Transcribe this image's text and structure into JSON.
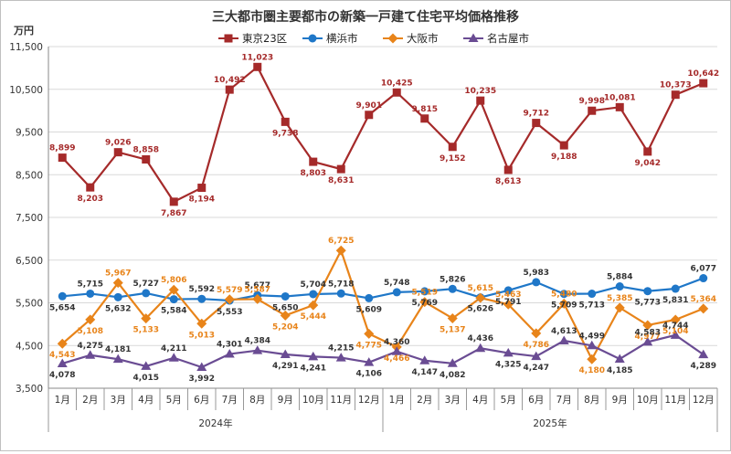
{
  "chart_data": {
    "type": "line",
    "title": "三大都市圏主要都市の新築一戸建て住宅平均価格推移",
    "ylabel": "万円",
    "ylim": [
      3500,
      11500
    ],
    "yticks": [
      3500,
      4500,
      5500,
      6500,
      7500,
      8500,
      9500,
      10500,
      11500
    ],
    "ytick_labels": [
      "3,500",
      "4,500",
      "5,500",
      "6,500",
      "7,500",
      "8,500",
      "9,500",
      "10,500",
      "11,500"
    ],
    "categories": [
      "1月",
      "2月",
      "3月",
      "4月",
      "5月",
      "6月",
      "7月",
      "8月",
      "9月",
      "10月",
      "11月",
      "12月",
      "1月",
      "2月",
      "3月",
      "4月",
      "5月",
      "6月",
      "7月",
      "8月",
      "9月",
      "10月",
      "11月",
      "12月"
    ],
    "year_groups": [
      {
        "label": "2024年",
        "start": 0,
        "end": 11
      },
      {
        "label": "2025年",
        "start": 12,
        "end": 23
      }
    ],
    "legend_position": "top-center",
    "series": [
      {
        "name": "東京23区",
        "color": "#a52a2a",
        "marker": "square",
        "values": [
          8899,
          8203,
          9026,
          8858,
          7867,
          8194,
          10492,
          11023,
          9738,
          8803,
          8631,
          9901,
          10425,
          9815,
          9152,
          10235,
          8613,
          9712,
          9188,
          9998,
          10081,
          9042,
          10373,
          10642
        ],
        "labels": [
          "8,899",
          "8,203",
          "9,026",
          "8,858",
          "7,867",
          "8,194",
          "10,492",
          "11,023",
          "9,738",
          "8,803",
          "8,631",
          "9,901",
          "10,425",
          "9,815",
          "9,152",
          "10,235",
          "8,613",
          "9,712",
          "9,188",
          "9,998",
          "10,081",
          "9,042",
          "10,373",
          "10,642"
        ]
      },
      {
        "name": "横浜市",
        "color": "#1f77c8",
        "marker": "circle",
        "values": [
          5654,
          5715,
          5632,
          5727,
          5584,
          5592,
          5553,
          5677,
          5650,
          5704,
          5718,
          5609,
          5748,
          5769,
          5826,
          5626,
          5791,
          5983,
          5709,
          5713,
          5884,
          5773,
          5831,
          6077
        ],
        "labels": [
          "5,654",
          "5,715",
          "5,632",
          "5,727",
          "5,584",
          "5,592",
          "5,553",
          "5,677",
          "5,650",
          "5,704",
          "5,718",
          "5,609",
          "5,748",
          "5,769",
          "5,826",
          "5,626",
          "5,791",
          "5,983",
          "5,709",
          "5,713",
          "5,884",
          "5,773",
          "5,831",
          "6,077"
        ]
      },
      {
        "name": "大阪市",
        "color": "#e8841a",
        "marker": "diamond",
        "values": [
          4543,
          5108,
          5967,
          5133,
          5806,
          5013,
          5579,
          5587,
          5204,
          5444,
          6725,
          4775,
          4466,
          5519,
          5137,
          5615,
          5463,
          4786,
          5480,
          4180,
          5385,
          4977,
          5104,
          5364
        ],
        "labels": [
          "4,543",
          "5,108",
          "5,967",
          "5,133",
          "5,806",
          "5,013",
          "5,579",
          "5,587",
          "5,204",
          "5,444",
          "6,725",
          "4,775",
          "4,466",
          "5,519",
          "5,137",
          "5,615",
          "5,463",
          "4,786",
          "5,480",
          "4,180",
          "5,385",
          "4,977",
          "5,104",
          "5,364"
        ]
      },
      {
        "name": "名古屋市",
        "color": "#6a4c93",
        "marker": "triangle",
        "values": [
          4078,
          4275,
          4181,
          4015,
          4211,
          3992,
          4301,
          4384,
          4291,
          4241,
          4215,
          4106,
          4360,
          4147,
          4082,
          4436,
          4325,
          4247,
          4613,
          4499,
          4185,
          4583,
          4744,
          4289
        ],
        "labels": [
          "4,078",
          "4,275",
          "4,181",
          "4,015",
          "4,211",
          "3,992",
          "4,301",
          "4,384",
          "4,291",
          "4,241",
          "4,215",
          "4,106",
          "4,360",
          "4,147",
          "4,082",
          "4,436",
          "4,325",
          "4,247",
          "4,613",
          "4,499",
          "4,185",
          "4,583",
          "4,744",
          "4,289"
        ]
      }
    ]
  }
}
